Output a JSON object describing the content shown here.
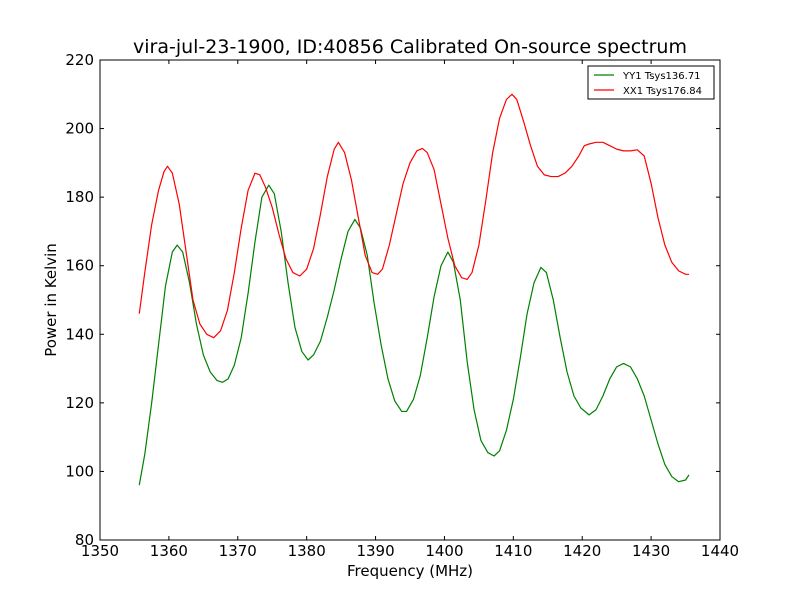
{
  "chart_data": {
    "type": "line",
    "title": "vira-jul-23-1900, ID:40856 Calibrated On-source spectrum",
    "xlabel": "Frequency (MHz)",
    "ylabel": "Power in Kelvin",
    "xlim": [
      1350,
      1440
    ],
    "ylim": [
      80,
      220
    ],
    "xticks": [
      1350,
      1360,
      1370,
      1380,
      1390,
      1400,
      1410,
      1420,
      1430,
      1440
    ],
    "yticks": [
      80,
      100,
      120,
      140,
      160,
      180,
      200,
      220
    ],
    "grid": false,
    "legend_position": "top-right",
    "series": [
      {
        "name": "YY1 Tsys136.71",
        "color": "#008000",
        "points": [
          [
            1355.7,
            96
          ],
          [
            1356.5,
            105
          ],
          [
            1357.5,
            120
          ],
          [
            1358.5,
            137
          ],
          [
            1359.5,
            154
          ],
          [
            1360.5,
            164
          ],
          [
            1361.2,
            166
          ],
          [
            1362,
            164
          ],
          [
            1363,
            155
          ],
          [
            1364,
            143
          ],
          [
            1365,
            134
          ],
          [
            1366,
            129
          ],
          [
            1367,
            126.5
          ],
          [
            1367.8,
            126
          ],
          [
            1368.6,
            127
          ],
          [
            1369.5,
            131
          ],
          [
            1370.5,
            139
          ],
          [
            1371.5,
            152
          ],
          [
            1372.5,
            167
          ],
          [
            1373.5,
            180
          ],
          [
            1374.5,
            183.5
          ],
          [
            1375.3,
            181
          ],
          [
            1376.3,
            170
          ],
          [
            1377.3,
            155
          ],
          [
            1378.3,
            142
          ],
          [
            1379.3,
            135
          ],
          [
            1380.2,
            132.5
          ],
          [
            1381,
            134
          ],
          [
            1382,
            138
          ],
          [
            1383,
            145
          ],
          [
            1384,
            153
          ],
          [
            1385,
            162
          ],
          [
            1386,
            170
          ],
          [
            1387,
            173.5
          ],
          [
            1387.8,
            171
          ],
          [
            1388.8,
            163
          ],
          [
            1389.8,
            149
          ],
          [
            1390.8,
            137
          ],
          [
            1391.8,
            127
          ],
          [
            1392.8,
            120.5
          ],
          [
            1393.8,
            117.5
          ],
          [
            1394.5,
            117.5
          ],
          [
            1395.5,
            121
          ],
          [
            1396.5,
            128
          ],
          [
            1397.5,
            139
          ],
          [
            1398.5,
            151
          ],
          [
            1399.5,
            160
          ],
          [
            1400.5,
            164
          ],
          [
            1401.3,
            161
          ],
          [
            1402.3,
            150
          ],
          [
            1403.3,
            132
          ],
          [
            1404.3,
            118
          ],
          [
            1405.3,
            109
          ],
          [
            1406.3,
            105.5
          ],
          [
            1407.2,
            104.5
          ],
          [
            1408,
            106
          ],
          [
            1409,
            112
          ],
          [
            1410,
            121
          ],
          [
            1411,
            133
          ],
          [
            1412,
            146
          ],
          [
            1413,
            155
          ],
          [
            1414,
            159.5
          ],
          [
            1414.8,
            158
          ],
          [
            1415.8,
            150
          ],
          [
            1416.8,
            139
          ],
          [
            1417.8,
            129
          ],
          [
            1418.8,
            122
          ],
          [
            1419.8,
            118.5
          ],
          [
            1421,
            116.5
          ],
          [
            1422,
            118
          ],
          [
            1423,
            122
          ],
          [
            1424,
            127
          ],
          [
            1425,
            130.5
          ],
          [
            1426,
            131.5
          ],
          [
            1427,
            130.5
          ],
          [
            1428,
            127
          ],
          [
            1429,
            122
          ],
          [
            1430,
            115
          ],
          [
            1431,
            108
          ],
          [
            1432,
            102
          ],
          [
            1433,
            98.5
          ],
          [
            1434,
            97
          ],
          [
            1435,
            97.5
          ],
          [
            1435.5,
            99
          ]
        ]
      },
      {
        "name": "XX1 Tsys176.84",
        "color": "#ff0000",
        "points": [
          [
            1355.7,
            146
          ],
          [
            1356.5,
            158
          ],
          [
            1357.5,
            172
          ],
          [
            1358.5,
            182
          ],
          [
            1359.3,
            187.5
          ],
          [
            1359.8,
            189
          ],
          [
            1360.5,
            187
          ],
          [
            1361.5,
            178
          ],
          [
            1362.5,
            164
          ],
          [
            1363.5,
            150
          ],
          [
            1364.5,
            143
          ],
          [
            1365.5,
            140
          ],
          [
            1366.5,
            139
          ],
          [
            1367.5,
            141
          ],
          [
            1368.5,
            147
          ],
          [
            1369.5,
            158
          ],
          [
            1370.5,
            171
          ],
          [
            1371.5,
            182
          ],
          [
            1372.5,
            187
          ],
          [
            1373.2,
            186.5
          ],
          [
            1374,
            183
          ],
          [
            1375,
            177
          ],
          [
            1376,
            169
          ],
          [
            1377,
            162
          ],
          [
            1378,
            158
          ],
          [
            1379,
            157
          ],
          [
            1380,
            159
          ],
          [
            1381,
            165
          ],
          [
            1382,
            175
          ],
          [
            1383,
            186
          ],
          [
            1384,
            194
          ],
          [
            1384.6,
            196
          ],
          [
            1385.5,
            193
          ],
          [
            1386.5,
            185
          ],
          [
            1387.5,
            174
          ],
          [
            1388.5,
            163
          ],
          [
            1389.5,
            158
          ],
          [
            1390.3,
            157.5
          ],
          [
            1391,
            159
          ],
          [
            1392,
            166
          ],
          [
            1393,
            175
          ],
          [
            1394,
            184
          ],
          [
            1395,
            190
          ],
          [
            1396,
            193.5
          ],
          [
            1396.8,
            194.2
          ],
          [
            1397.5,
            193
          ],
          [
            1398.5,
            188
          ],
          [
            1399.5,
            178
          ],
          [
            1400.5,
            168
          ],
          [
            1401.5,
            160
          ],
          [
            1402.5,
            156.5
          ],
          [
            1403.3,
            156
          ],
          [
            1404,
            158
          ],
          [
            1405,
            166
          ],
          [
            1406,
            179
          ],
          [
            1407,
            193
          ],
          [
            1408,
            203
          ],
          [
            1409,
            208.5
          ],
          [
            1409.8,
            210
          ],
          [
            1410.5,
            208.5
          ],
          [
            1411.5,
            202
          ],
          [
            1412.5,
            195
          ],
          [
            1413.5,
            189
          ],
          [
            1414.5,
            186.5
          ],
          [
            1415.5,
            186
          ],
          [
            1416.5,
            186
          ],
          [
            1417.5,
            187
          ],
          [
            1418.5,
            189
          ],
          [
            1419.5,
            192
          ],
          [
            1420.3,
            195
          ],
          [
            1421,
            195.5
          ],
          [
            1422,
            196
          ],
          [
            1423,
            196
          ],
          [
            1424,
            195
          ],
          [
            1425,
            194
          ],
          [
            1426,
            193.5
          ],
          [
            1427,
            193.5
          ],
          [
            1428,
            193.8
          ],
          [
            1429,
            192
          ],
          [
            1430,
            184
          ],
          [
            1431,
            174
          ],
          [
            1432,
            166
          ],
          [
            1433,
            161
          ],
          [
            1434,
            158.5
          ],
          [
            1435,
            157.5
          ],
          [
            1435.5,
            157.5
          ]
        ]
      }
    ]
  }
}
